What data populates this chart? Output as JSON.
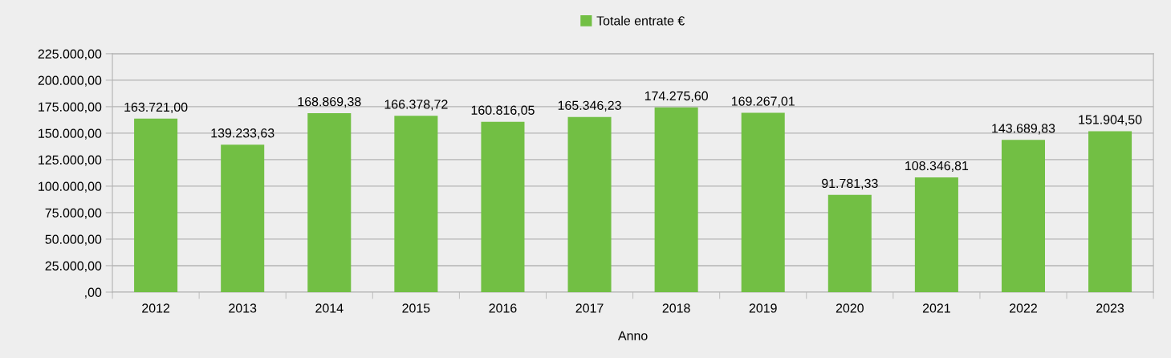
{
  "chart_data": {
    "type": "bar",
    "xlabel": "Anno",
    "legend": "top",
    "grid": "y",
    "categories": [
      "2012",
      "2013",
      "2014",
      "2015",
      "2016",
      "2017",
      "2018",
      "2019",
      "2020",
      "2021",
      "2022",
      "2023"
    ],
    "series": [
      {
        "name": "Totale entrate €",
        "color": "#72bf44",
        "values": [
          163721.0,
          139233.63,
          168869.38,
          166378.72,
          160816.05,
          165346.23,
          174275.6,
          169267.01,
          91781.33,
          108346.81,
          143689.83,
          151904.5
        ],
        "value_labels": [
          "163.721,00",
          "139.233,63",
          "168.869,38",
          "166.378,72",
          "160.816,05",
          "165.346,23",
          "174.275,60",
          "169.267,01",
          "91.781,33",
          "108.346,81",
          "143.689,83",
          "151.904,50"
        ]
      }
    ],
    "ylim": [
      0,
      225000
    ],
    "yticks": [
      {
        "value": 0,
        "label": ",00"
      },
      {
        "value": 25000,
        "label": "25.000,00"
      },
      {
        "value": 50000,
        "label": "50.000,00"
      },
      {
        "value": 75000,
        "label": "75.000,00"
      },
      {
        "value": 100000,
        "label": "100.000,00"
      },
      {
        "value": 125000,
        "label": "125.000,00"
      },
      {
        "value": 150000,
        "label": "150.000,00"
      },
      {
        "value": 175000,
        "label": "175.000,00"
      },
      {
        "value": 200000,
        "label": "200.000,00"
      },
      {
        "value": 225000,
        "label": "225.000,00"
      }
    ]
  }
}
